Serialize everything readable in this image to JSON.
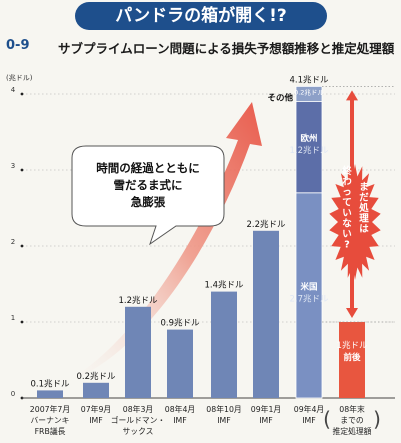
{
  "banner": "パンドラの箱が開く!?",
  "figure_code": "0-9",
  "title": "サブプライムローン問題による損失予想額推移と推定処理額",
  "callout": [
    "時間の経過とともに",
    "雪だるま式に",
    "急膨張"
  ],
  "warning": [
    "まだ処理は",
    "終わっていない?"
  ],
  "colors": {
    "banner": "#1e4f8c",
    "bar": "#6f86b6",
    "projected_bar": "#e8563f",
    "us": "#7a90c2",
    "europe": "#5c6ea8",
    "other": "#8da0c8",
    "arrow": "#e74c3c"
  },
  "chart_data": {
    "type": "bar",
    "ylabel": "(兆ドル)",
    "ylim": [
      0,
      4.5
    ],
    "yticks": [
      0,
      1,
      2,
      3,
      4
    ],
    "categories": [
      [
        "2007年7月",
        "バーナンキ",
        "FRB議長"
      ],
      [
        "07年9月",
        "IMF"
      ],
      [
        "08年3月",
        "ゴールドマン・",
        "サックス"
      ],
      [
        "08年4月",
        "IMF"
      ],
      [
        "08年10月",
        "IMF"
      ],
      [
        "09年1月",
        "IMF"
      ],
      [
        "09年4月",
        "IMF"
      ],
      [
        "08年末",
        "までの",
        "推定処理額"
      ]
    ],
    "values": [
      0.1,
      0.2,
      1.2,
      0.9,
      1.4,
      2.2,
      4.1,
      1.0
    ],
    "value_labels": [
      "0.1兆ドル",
      "0.2兆ドル",
      "1.2兆ドル",
      "0.9兆ドル",
      "1.4兆ドル",
      "2.2兆ドル",
      "4.1兆ドル",
      "1兆ドル 前後"
    ],
    "stacked_bar": {
      "category_index": 6,
      "segments": [
        {
          "name": "米国",
          "value": 2.7,
          "label": "2.7兆ドル"
        },
        {
          "name": "欧州",
          "value": 1.2,
          "label": "1.2兆ドル"
        },
        {
          "name": "その他",
          "value": 0.2,
          "label": "0.2兆ドル"
        }
      ]
    }
  }
}
